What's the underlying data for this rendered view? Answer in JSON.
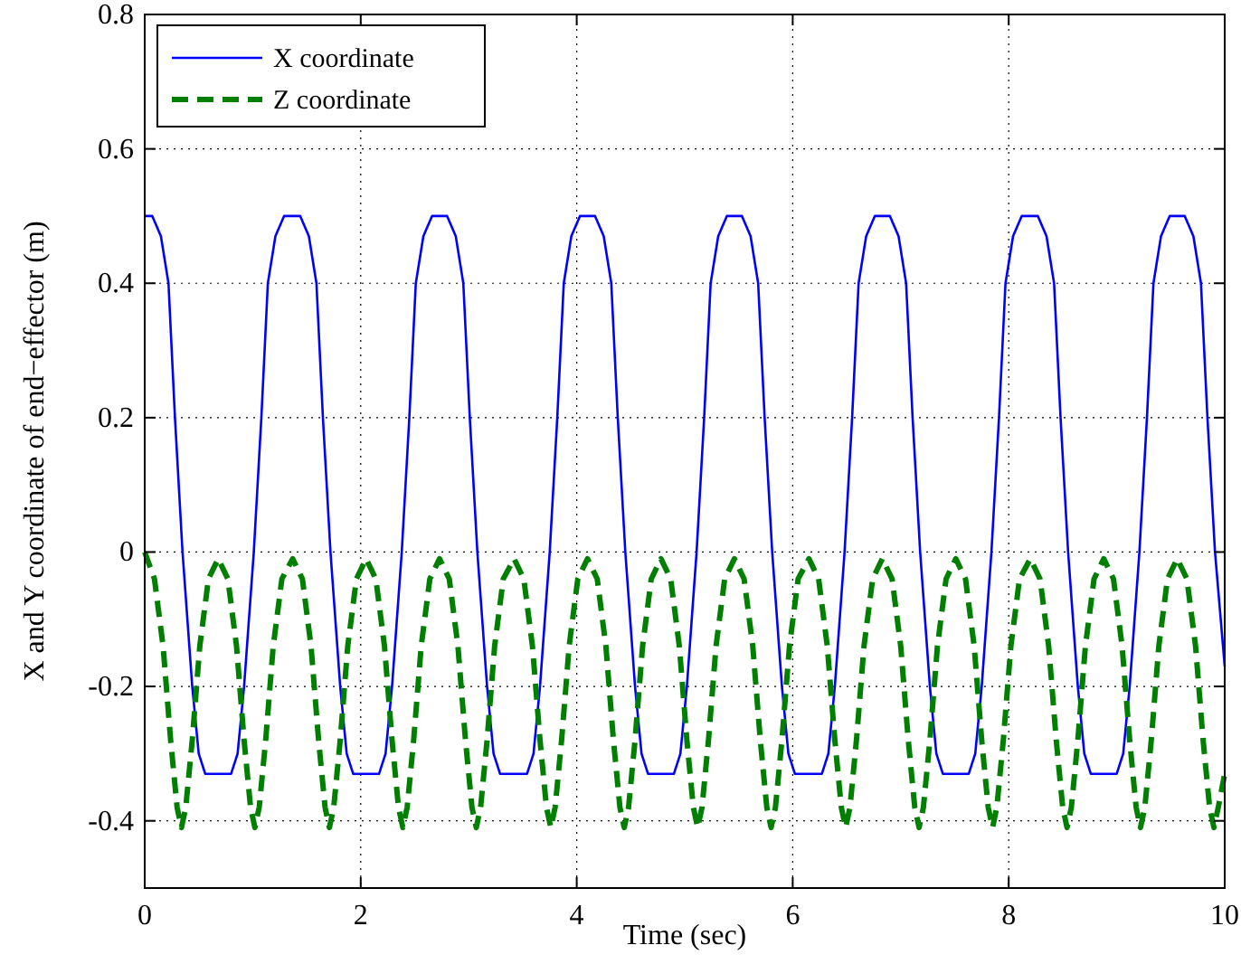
{
  "chart_data": {
    "type": "line",
    "xlabel": "Time (sec)",
    "ylabel": "X and Y coordinate of end−effector (m)",
    "xlim": [
      0,
      10
    ],
    "ylim": [
      -0.5,
      0.8
    ],
    "xticks": [
      0,
      2,
      4,
      6,
      8,
      10
    ],
    "yticks": [
      -0.4,
      -0.2,
      0,
      0.2,
      0.4,
      0.6,
      0.8
    ],
    "grid": true,
    "legend": "top left",
    "series": [
      {
        "name": "X coordinate",
        "color": "#0000ff",
        "line_style": "solid",
        "x": [
          0,
          0.07,
          0.15,
          0.22,
          0.28,
          0.35,
          0.44,
          0.5,
          0.56,
          0.68,
          0.8,
          0.86,
          0.92,
          1.01,
          1.08,
          1.14,
          1.21,
          1.29,
          1.37,
          1.44,
          1.52,
          1.59,
          1.65,
          1.72,
          1.81,
          1.87,
          1.93,
          2.05,
          2.17,
          2.23,
          2.29,
          2.38,
          2.45,
          2.51,
          2.58,
          2.66,
          2.73,
          2.8,
          2.88,
          2.95,
          3.01,
          3.08,
          3.17,
          3.23,
          3.29,
          3.42,
          3.54,
          3.6,
          3.66,
          3.75,
          3.82,
          3.88,
          3.95,
          4.03,
          4.1,
          4.17,
          4.25,
          4.32,
          4.38,
          4.45,
          4.54,
          4.6,
          4.66,
          4.78,
          4.9,
          4.96,
          5.02,
          5.11,
          5.18,
          5.24,
          5.31,
          5.39,
          5.46,
          5.53,
          5.61,
          5.68,
          5.74,
          5.81,
          5.9,
          5.96,
          6.02,
          6.15,
          6.27,
          6.33,
          6.39,
          6.48,
          6.55,
          6.61,
          6.68,
          6.76,
          6.83,
          6.9,
          6.98,
          7.05,
          7.11,
          7.18,
          7.27,
          7.33,
          7.39,
          7.51,
          7.63,
          7.69,
          7.75,
          7.84,
          7.91,
          7.97,
          8.04,
          8.12,
          8.2,
          8.27,
          8.35,
          8.42,
          8.48,
          8.55,
          8.64,
          8.7,
          8.76,
          8.88,
          9.0,
          9.06,
          9.12,
          9.21,
          9.28,
          9.34,
          9.41,
          9.49,
          9.56,
          9.63,
          9.71,
          9.78,
          9.84,
          9.91,
          10
        ],
        "values": [
          0.5,
          0.5,
          0.47,
          0.4,
          0.2,
          0,
          -0.2,
          -0.3,
          -0.33,
          -0.33,
          -0.33,
          -0.3,
          -0.2,
          0,
          0.2,
          0.4,
          0.47,
          0.5,
          0.5,
          0.5,
          0.47,
          0.4,
          0.2,
          0,
          -0.2,
          -0.3,
          -0.33,
          -0.33,
          -0.33,
          -0.3,
          -0.2,
          0,
          0.2,
          0.4,
          0.47,
          0.5,
          0.5,
          0.5,
          0.47,
          0.4,
          0.2,
          0,
          -0.2,
          -0.3,
          -0.33,
          -0.33,
          -0.33,
          -0.3,
          -0.2,
          0,
          0.2,
          0.4,
          0.47,
          0.5,
          0.5,
          0.5,
          0.47,
          0.4,
          0.2,
          0,
          -0.2,
          -0.3,
          -0.33,
          -0.33,
          -0.33,
          -0.3,
          -0.2,
          0,
          0.2,
          0.4,
          0.47,
          0.5,
          0.5,
          0.5,
          0.47,
          0.4,
          0.2,
          0,
          -0.2,
          -0.3,
          -0.33,
          -0.33,
          -0.33,
          -0.3,
          -0.2,
          0,
          0.2,
          0.4,
          0.47,
          0.5,
          0.5,
          0.5,
          0.47,
          0.4,
          0.2,
          0,
          -0.2,
          -0.3,
          -0.33,
          -0.33,
          -0.33,
          -0.3,
          -0.2,
          0,
          0.2,
          0.4,
          0.47,
          0.5,
          0.5,
          0.5,
          0.47,
          0.4,
          0.2,
          0,
          -0.2,
          -0.3,
          -0.33,
          -0.33,
          -0.33,
          -0.3,
          -0.2,
          0,
          0.2,
          0.4,
          0.47,
          0.5,
          0.5,
          0.5,
          0.47,
          0.4,
          0.2,
          0,
          -0.17
        ]
      },
      {
        "name": "Z coordinate",
        "color": "#007f00",
        "line_style": "dashed",
        "x": [
          0,
          0.09,
          0.17,
          0.24,
          0.3,
          0.34,
          0.38,
          0.44,
          0.51,
          0.59,
          0.68,
          0.77,
          0.85,
          0.92,
          0.98,
          1.02,
          1.06,
          1.12,
          1.19,
          1.27,
          1.37,
          1.46,
          1.54,
          1.61,
          1.67,
          1.71,
          1.75,
          1.81,
          1.88,
          1.96,
          2.05,
          2.14,
          2.22,
          2.29,
          2.35,
          2.39,
          2.43,
          2.49,
          2.56,
          2.64,
          2.73,
          2.82,
          2.9,
          2.97,
          3.03,
          3.07,
          3.11,
          3.17,
          3.24,
          3.32,
          3.42,
          3.51,
          3.59,
          3.66,
          3.72,
          3.76,
          3.8,
          3.86,
          3.93,
          4.01,
          4.1,
          4.19,
          4.27,
          4.34,
          4.4,
          4.44,
          4.48,
          4.54,
          4.61,
          4.69,
          4.78,
          4.87,
          4.95,
          5.02,
          5.08,
          5.12,
          5.16,
          5.22,
          5.29,
          5.37,
          5.46,
          5.55,
          5.63,
          5.7,
          5.76,
          5.8,
          5.84,
          5.9,
          5.97,
          6.05,
          6.15,
          6.24,
          6.32,
          6.39,
          6.45,
          6.49,
          6.53,
          6.59,
          6.66,
          6.74,
          6.83,
          6.92,
          7.0,
          7.07,
          7.13,
          7.17,
          7.21,
          7.27,
          7.34,
          7.42,
          7.51,
          7.6,
          7.68,
          7.75,
          7.81,
          7.85,
          7.89,
          7.95,
          8.02,
          8.1,
          8.2,
          8.29,
          8.37,
          8.44,
          8.5,
          8.54,
          8.58,
          8.64,
          8.71,
          8.79,
          8.88,
          8.97,
          9.05,
          9.12,
          9.18,
          9.22,
          9.26,
          9.32,
          9.39,
          9.47,
          9.56,
          9.65,
          9.73,
          9.8,
          9.86,
          9.9,
          9.94,
          10
        ],
        "values": [
          0,
          -0.04,
          -0.14,
          -0.28,
          -0.38,
          -0.41,
          -0.38,
          -0.28,
          -0.14,
          -0.04,
          -0.01,
          -0.04,
          -0.14,
          -0.28,
          -0.38,
          -0.41,
          -0.38,
          -0.28,
          -0.14,
          -0.04,
          -0.01,
          -0.04,
          -0.14,
          -0.28,
          -0.38,
          -0.41,
          -0.38,
          -0.28,
          -0.14,
          -0.04,
          -0.01,
          -0.04,
          -0.14,
          -0.28,
          -0.38,
          -0.41,
          -0.38,
          -0.28,
          -0.14,
          -0.04,
          -0.01,
          -0.04,
          -0.14,
          -0.28,
          -0.38,
          -0.41,
          -0.38,
          -0.28,
          -0.14,
          -0.04,
          -0.01,
          -0.04,
          -0.14,
          -0.28,
          -0.38,
          -0.41,
          -0.38,
          -0.28,
          -0.14,
          -0.04,
          -0.01,
          -0.04,
          -0.14,
          -0.28,
          -0.38,
          -0.41,
          -0.38,
          -0.28,
          -0.14,
          -0.04,
          -0.01,
          -0.04,
          -0.14,
          -0.28,
          -0.38,
          -0.41,
          -0.38,
          -0.28,
          -0.14,
          -0.04,
          -0.01,
          -0.04,
          -0.14,
          -0.28,
          -0.38,
          -0.41,
          -0.38,
          -0.28,
          -0.14,
          -0.04,
          -0.01,
          -0.04,
          -0.14,
          -0.28,
          -0.38,
          -0.41,
          -0.38,
          -0.28,
          -0.14,
          -0.04,
          -0.01,
          -0.04,
          -0.14,
          -0.28,
          -0.38,
          -0.41,
          -0.38,
          -0.28,
          -0.14,
          -0.04,
          -0.01,
          -0.04,
          -0.14,
          -0.28,
          -0.38,
          -0.41,
          -0.38,
          -0.28,
          -0.14,
          -0.04,
          -0.01,
          -0.04,
          -0.14,
          -0.28,
          -0.38,
          -0.41,
          -0.38,
          -0.28,
          -0.14,
          -0.04,
          -0.01,
          -0.04,
          -0.14,
          -0.28,
          -0.38,
          -0.41,
          -0.38,
          -0.28,
          -0.14,
          -0.04,
          -0.01,
          -0.04,
          -0.14,
          -0.28,
          -0.38,
          -0.41,
          -0.38,
          -0.33
        ]
      }
    ]
  }
}
